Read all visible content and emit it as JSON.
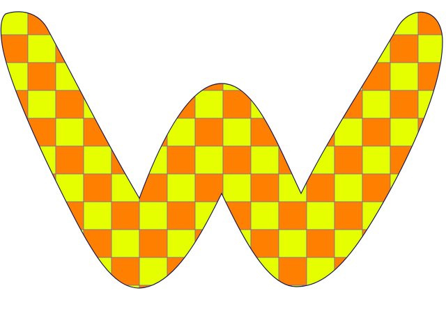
{
  "figure": {
    "shape": "w-logo-shape",
    "pattern": "checkerboard",
    "colors": {
      "background": "#ffffff",
      "checker_a": "#e6ff00",
      "checker_b": "#ff7f00",
      "grid_line": "#6f6fb0",
      "outline": "#1a1a50"
    }
  }
}
